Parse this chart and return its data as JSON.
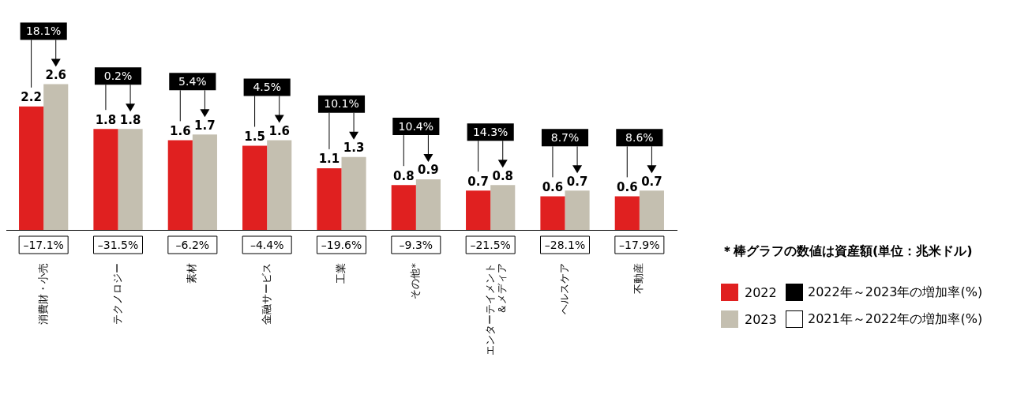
{
  "chart_data": {
    "type": "bar",
    "categories": [
      "消費財・小売",
      "テクノロジー",
      "素材",
      "金融サービス",
      "工業",
      "その他*",
      [
        "エンターテイメント",
        "＆メディア"
      ],
      "ヘルスケア",
      "不動産"
    ],
    "series": [
      {
        "name": "2022",
        "color": "#e02020",
        "values": [
          2.2,
          1.8,
          1.6,
          1.5,
          1.1,
          0.8,
          0.7,
          0.6,
          0.6
        ]
      },
      {
        "name": "2023",
        "color": "#c4bfb0",
        "values": [
          2.6,
          1.8,
          1.7,
          1.6,
          1.3,
          0.9,
          0.8,
          0.7,
          0.7
        ]
      }
    ],
    "tick_labels": "x",
    "grid": false,
    "legend": "right",
    "data_labels": true,
    "annotations": [
      "＊棒グラフの数値は資産額(単位：兆米ドル)",
      "2022年～2023年の増加率(%)",
      "2021年～2022年の増加率(%)",
      "18.1%",
      "0.2%",
      "5.4%",
      "4.5%",
      "10.1%",
      "10.4%",
      "14.3%",
      "8.7%",
      "8.6%",
      "–17.1%",
      "–31.5%",
      "–6.2%",
      "–4.4%",
      "–19.6%",
      "–9.3%",
      "–21.5%",
      "–28.1%",
      "–17.9%"
    ]
  }
}
